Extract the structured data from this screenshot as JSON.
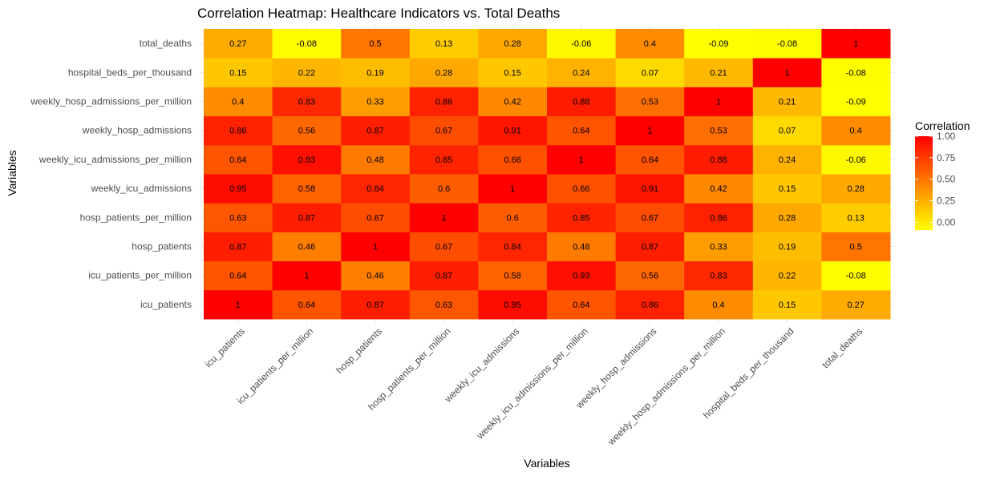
{
  "chart_data": {
    "type": "heatmap",
    "title": "Correlation Heatmap: Healthcare Indicators vs. Total Deaths",
    "xlabel": "Variables",
    "ylabel": "Variables",
    "x_categories": [
      "icu_patients",
      "icu_patients_per_million",
      "hosp_patients",
      "hosp_patients_per_million",
      "weekly_icu_admissions",
      "weekly_icu_admissions_per_million",
      "weekly_hosp_admissions",
      "weekly_hosp_admissions_per_million",
      "hospital_beds_per_thousand",
      "total_deaths"
    ],
    "y_categories_bottom_to_top": [
      "icu_patients",
      "icu_patients_per_million",
      "hosp_patients",
      "hosp_patients_per_million",
      "weekly_icu_admissions",
      "weekly_icu_admissions_per_million",
      "weekly_hosp_admissions",
      "weekly_hosp_admissions_per_million",
      "hospital_beds_per_thousand",
      "total_deaths"
    ],
    "matrix_labels": [
      [
        "1",
        "0.64",
        "0.87",
        "0.63",
        "0.95",
        "0.64",
        "0.86",
        "0.4",
        "0.15",
        "0.27"
      ],
      [
        "0.64",
        "1",
        "0.46",
        "0.87",
        "0.58",
        "0.93",
        "0.56",
        "0.83",
        "0.22",
        "-0.08"
      ],
      [
        "0.87",
        "0.46",
        "1",
        "0.67",
        "0.84",
        "0.48",
        "0.87",
        "0.33",
        "0.19",
        "0.5"
      ],
      [
        "0.63",
        "0.87",
        "0.67",
        "1",
        "0.6",
        "0.85",
        "0.67",
        "0.86",
        "0.28",
        "0.13"
      ],
      [
        "0.95",
        "0.58",
        "0.84",
        "0.6",
        "1",
        "0.66",
        "0.91",
        "0.42",
        "0.15",
        "0.28"
      ],
      [
        "0.64",
        "0.93",
        "0.48",
        "0.85",
        "0.66",
        "1",
        "0.64",
        "0.88",
        "0.24",
        "-0.06"
      ],
      [
        "0.86",
        "0.56",
        "0.87",
        "0.67",
        "0.91",
        "0.64",
        "1",
        "0.53",
        "0.07",
        "0.4"
      ],
      [
        "0.4",
        "0.83",
        "0.33",
        "0.86",
        "0.42",
        "0.88",
        "0.53",
        "1",
        "0.21",
        "-0.09"
      ],
      [
        "0.15",
        "0.22",
        "0.19",
        "0.28",
        "0.15",
        "0.24",
        "0.07",
        "0.21",
        "1",
        "-0.08"
      ],
      [
        "0.27",
        "-0.08",
        "0.5",
        "0.13",
        "0.28",
        "-0.06",
        "0.4",
        "-0.09",
        "-0.08",
        "1"
      ]
    ],
    "legend": {
      "title": "Correlation",
      "position": "right",
      "min": -0.09,
      "max": 1.0,
      "ticks": [
        "0.00",
        "0.25",
        "0.50",
        "0.75",
        "1.00"
      ],
      "tick_values": [
        0,
        0.25,
        0.5,
        0.75,
        1.0
      ],
      "low_color": "#FFFF00",
      "high_color": "#FF0000"
    },
    "grid": true,
    "background": "#FFFFFF"
  }
}
